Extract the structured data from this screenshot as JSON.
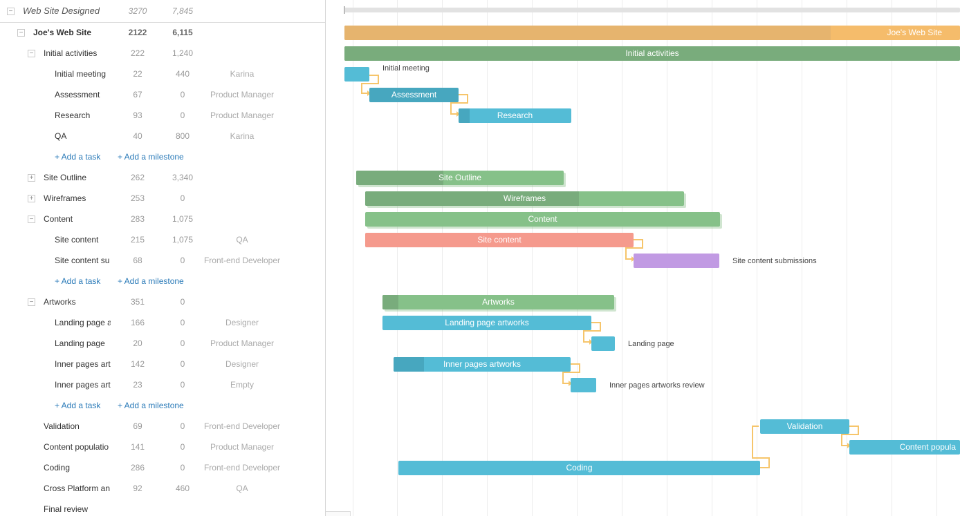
{
  "grid": {
    "header": {
      "name": "Web Site Designed",
      "duration": "3270",
      "cost": "7,845"
    },
    "rows": [
      {
        "name": "Joe's Web Site",
        "duration": "2122",
        "cost": "6,115",
        "assignee": ""
      },
      {
        "name": "Initial activities",
        "duration": "222",
        "cost": "1,240",
        "assignee": ""
      },
      {
        "name": "Initial meeting",
        "duration": "22",
        "cost": "440",
        "assignee": "Karina"
      },
      {
        "name": "Assessment",
        "duration": "67",
        "cost": "0",
        "assignee": "Product Manager"
      },
      {
        "name": "Research",
        "duration": "93",
        "cost": "0",
        "assignee": "Product Manager"
      },
      {
        "name": "QA",
        "duration": "40",
        "cost": "800",
        "assignee": "Karina"
      },
      {
        "add_task": "+ Add a task",
        "add_milestone": "+ Add a milestone"
      },
      {
        "name": "Site Outline",
        "duration": "262",
        "cost": "3,340",
        "assignee": ""
      },
      {
        "name": "Wireframes",
        "duration": "253",
        "cost": "0",
        "assignee": ""
      },
      {
        "name": "Content",
        "duration": "283",
        "cost": "1,075",
        "assignee": ""
      },
      {
        "name": "Site content",
        "duration": "215",
        "cost": "1,075",
        "assignee": "QA"
      },
      {
        "name": "Site content su",
        "duration": "68",
        "cost": "0",
        "assignee": "Front-end Developer"
      },
      {
        "add_task": "+ Add a task",
        "add_milestone": "+ Add a milestone"
      },
      {
        "name": "Artworks",
        "duration": "351",
        "cost": "0",
        "assignee": ""
      },
      {
        "name": "Landing page a",
        "duration": "166",
        "cost": "0",
        "assignee": "Designer"
      },
      {
        "name": "Landing page",
        "duration": "20",
        "cost": "0",
        "assignee": "Product Manager"
      },
      {
        "name": "Inner pages art",
        "duration": "142",
        "cost": "0",
        "assignee": "Designer"
      },
      {
        "name": "Inner pages art",
        "duration": "23",
        "cost": "0",
        "assignee": "Empty"
      },
      {
        "add_task": "+ Add a task",
        "add_milestone": "+ Add a milestone"
      },
      {
        "name": "Validation",
        "duration": "69",
        "cost": "0",
        "assignee": "Front-end Developer"
      },
      {
        "name": "Content populatio",
        "duration": "141",
        "cost": "0",
        "assignee": "Product Manager"
      },
      {
        "name": "Coding",
        "duration": "286",
        "cost": "0",
        "assignee": "Front-end Developer"
      },
      {
        "name": "Cross Platform an",
        "duration": "92",
        "cost": "460",
        "assignee": "QA"
      },
      {
        "name": "Final review",
        "duration": "",
        "cost": "",
        "assignee": ""
      }
    ]
  },
  "chart": {
    "bars": [
      {
        "label": "Joe's Web Site",
        "progress": 0.79
      },
      {
        "label": "Initial activities",
        "progress": 1.0
      },
      {
        "label": "",
        "progress": 0
      },
      {
        "label": "Assessment",
        "progress": 0
      },
      {
        "label": "Research",
        "progress": 0.1
      },
      {
        "label": "Site Outline",
        "progress": 0.42
      },
      {
        "label": "Wireframes",
        "progress": 0.67
      },
      {
        "label": "Content",
        "progress": 0
      },
      {
        "label": "Site content",
        "progress": 0
      },
      {
        "label": "",
        "progress": 0
      },
      {
        "label": "Artworks",
        "progress": 0.07
      },
      {
        "label": "Landing page artworks",
        "progress": 0
      },
      {
        "label": "",
        "progress": 0
      },
      {
        "label": "Inner pages artworks",
        "progress": 0.17
      },
      {
        "label": "",
        "progress": 0
      },
      {
        "label": "Validation",
        "progress": 0
      },
      {
        "label": "Content popula",
        "progress": 0
      },
      {
        "label": "Coding",
        "progress": 0
      }
    ],
    "side_labels": {
      "initial_meeting": "Initial meeting",
      "site_content_submissions": "Site content submissions",
      "landing_page": "Landing page",
      "inner_pages_review": "Inner pages artworks review"
    }
  },
  "colors": {
    "project": "#f5bc6b",
    "project_progress": "#e6b46e",
    "summary": "#86c189",
    "summary_progress": "#79ac7c",
    "task": "#54bcd6",
    "task_progress": "#47a7bf",
    "site_content": "#f59a8d",
    "submissions": "#c19ae3",
    "link": "#f6c56b"
  }
}
